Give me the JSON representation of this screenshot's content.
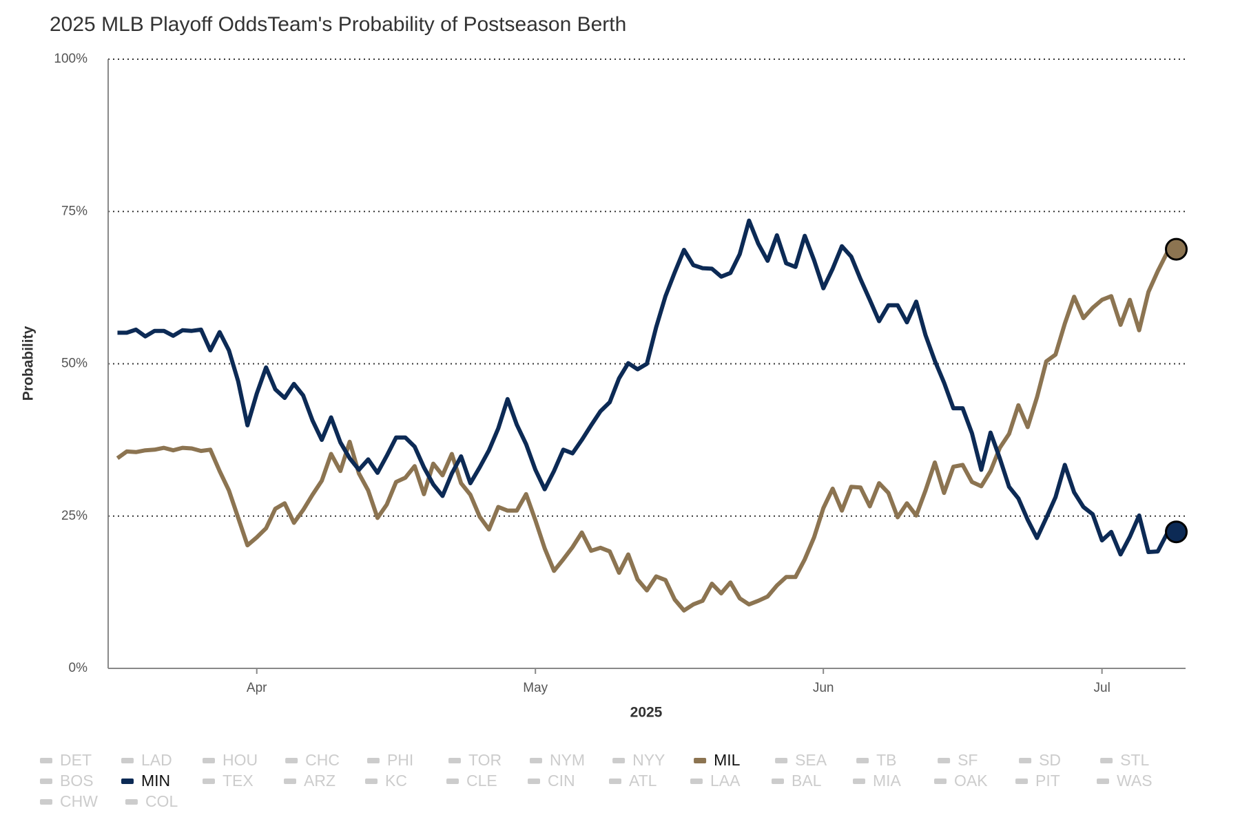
{
  "chart_data": {
    "type": "line",
    "title": "2025 MLB Playoff OddsTeam's Probability of Postseason Berth",
    "xlabel": "2025",
    "ylabel": "Probability",
    "x": [
      "2025-03-17",
      "2025-03-18",
      "2025-03-19",
      "2025-03-20",
      "2025-03-21",
      "2025-03-22",
      "2025-03-23",
      "2025-03-24",
      "2025-03-25",
      "2025-03-26",
      "2025-03-27",
      "2025-03-28",
      "2025-03-29",
      "2025-03-30",
      "2025-03-31",
      "2025-04-01",
      "2025-04-02",
      "2025-04-03",
      "2025-04-04",
      "2025-04-05",
      "2025-04-06",
      "2025-04-07",
      "2025-04-08",
      "2025-04-09",
      "2025-04-10",
      "2025-04-11",
      "2025-04-12",
      "2025-04-13",
      "2025-04-14",
      "2025-04-15",
      "2025-04-16",
      "2025-04-17",
      "2025-04-18",
      "2025-04-19",
      "2025-04-20",
      "2025-04-21",
      "2025-04-22",
      "2025-04-23",
      "2025-04-24",
      "2025-04-25",
      "2025-04-26",
      "2025-04-27",
      "2025-04-28",
      "2025-04-29",
      "2025-04-30",
      "2025-05-01",
      "2025-05-02",
      "2025-05-03",
      "2025-05-04",
      "2025-05-05",
      "2025-05-06",
      "2025-05-07",
      "2025-05-08",
      "2025-05-09",
      "2025-05-10",
      "2025-05-11",
      "2025-05-12",
      "2025-05-13",
      "2025-05-14",
      "2025-05-15",
      "2025-05-16",
      "2025-05-17",
      "2025-05-18",
      "2025-05-19",
      "2025-05-20",
      "2025-05-21",
      "2025-05-22",
      "2025-05-23",
      "2025-05-24",
      "2025-05-25",
      "2025-05-26",
      "2025-05-27",
      "2025-05-28",
      "2025-05-29",
      "2025-05-30",
      "2025-05-31",
      "2025-06-01",
      "2025-06-02",
      "2025-06-03",
      "2025-06-04",
      "2025-06-05",
      "2025-06-06",
      "2025-06-07",
      "2025-06-08",
      "2025-06-09",
      "2025-06-10",
      "2025-06-11",
      "2025-06-12",
      "2025-06-13",
      "2025-06-14",
      "2025-06-15",
      "2025-06-16",
      "2025-06-17",
      "2025-06-18",
      "2025-06-19",
      "2025-06-20",
      "2025-06-21",
      "2025-06-22",
      "2025-06-23",
      "2025-06-24",
      "2025-06-25",
      "2025-06-26",
      "2025-06-27",
      "2025-06-28",
      "2025-06-29",
      "2025-06-30",
      "2025-07-01",
      "2025-07-02",
      "2025-07-03",
      "2025-07-04",
      "2025-07-05",
      "2025-07-06",
      "2025-07-07",
      "2025-07-08",
      "2025-07-09"
    ],
    "xlim": [
      "2025-03-16",
      "2025-07-10"
    ],
    "xticks": [
      {
        "value": "2025-04-01",
        "label": "Apr"
      },
      {
        "value": "2025-05-01",
        "label": "May"
      },
      {
        "value": "2025-06-01",
        "label": "Jun"
      },
      {
        "value": "2025-07-01",
        "label": "Jul"
      }
    ],
    "ylim": [
      0,
      100
    ],
    "yticks": [
      {
        "value": 0,
        "label": "0%"
      },
      {
        "value": 25,
        "label": "25%"
      },
      {
        "value": 50,
        "label": "50%"
      },
      {
        "value": 75,
        "label": "75%"
      },
      {
        "value": 100,
        "label": "100%"
      }
    ],
    "grid": true,
    "series": [
      {
        "name": "MIL",
        "color": "#8c7451",
        "values": [
          34.5,
          35.6,
          35.5,
          35.8,
          35.9,
          36.2,
          35.8,
          36.2,
          36.1,
          35.7,
          35.9,
          32.4,
          29.2,
          24.7,
          20.2,
          21.5,
          23.0,
          26.2,
          27.1,
          23.9,
          26.0,
          28.5,
          30.8,
          35.2,
          32.4,
          37.2,
          32.0,
          29.2,
          24.7,
          26.9,
          30.6,
          31.3,
          33.2,
          28.6,
          33.6,
          31.7,
          35.2,
          30.4,
          28.5,
          24.9,
          22.8,
          26.5,
          25.9,
          25.9,
          28.6,
          24.3,
          19.7,
          16.0,
          17.9,
          19.9,
          22.3,
          19.3,
          19.8,
          19.2,
          15.7,
          18.7,
          14.6,
          12.8,
          15.1,
          14.5,
          11.3,
          9.5,
          10.5,
          11.1,
          13.9,
          12.3,
          14.1,
          11.5,
          10.5,
          11.1,
          11.8,
          13.6,
          15.0,
          15.0,
          17.9,
          21.5,
          26.3,
          29.5,
          25.9,
          29.8,
          29.7,
          26.6,
          30.4,
          28.8,
          24.8,
          27.1,
          25.1,
          29.2,
          33.8,
          28.8,
          33.1,
          33.4,
          30.6,
          29.9,
          32.4,
          36.2,
          38.5,
          43.2,
          39.6,
          44.5,
          50.4,
          51.5,
          56.6,
          61.0,
          57.5,
          59.2,
          60.5,
          61.1,
          56.4,
          60.5,
          55.5,
          61.8,
          65.2,
          68.2,
          68.8
        ]
      },
      {
        "name": "MIN",
        "color": "#0c2a55",
        "values": [
          55.1,
          55.1,
          55.6,
          54.5,
          55.4,
          55.4,
          54.6,
          55.5,
          55.4,
          55.6,
          52.2,
          55.2,
          52.2,
          47.1,
          39.9,
          45.1,
          49.4,
          45.8,
          44.4,
          46.7,
          44.8,
          40.7,
          37.5,
          41.2,
          37.1,
          34.5,
          32.6,
          34.3,
          32.1,
          34.9,
          37.9,
          37.9,
          36.4,
          33.0,
          30.2,
          28.3,
          32.0,
          34.8,
          30.4,
          33.0,
          35.8,
          39.4,
          44.2,
          40.0,
          36.8,
          32.6,
          29.4,
          32.4,
          35.9,
          35.3,
          37.5,
          39.9,
          42.2,
          43.7,
          47.6,
          50.1,
          49.1,
          50.0,
          56.0,
          61.1,
          65.0,
          68.7,
          66.2,
          65.7,
          65.6,
          64.3,
          64.9,
          68.0,
          73.5,
          69.7,
          66.9,
          71.1,
          66.5,
          65.9,
          71.0,
          67.0,
          62.4,
          65.6,
          69.3,
          67.6,
          63.9,
          60.5,
          57.0,
          59.6,
          59.6,
          56.8,
          60.2,
          54.7,
          50.5,
          46.9,
          42.7,
          42.7,
          38.6,
          32.6,
          38.7,
          34.5,
          29.8,
          27.9,
          24.4,
          21.4,
          24.7,
          28.1,
          33.4,
          28.9,
          26.5,
          25.3,
          21.0,
          22.4,
          18.7,
          21.6,
          25.1,
          19.1,
          19.2,
          22.1,
          22.4
        ]
      }
    ],
    "legend": [
      "DET",
      "LAD",
      "HOU",
      "CHC",
      "PHI",
      "TOR",
      "NYM",
      "NYY",
      "MIL",
      "SEA",
      "TB",
      "SF",
      "SD",
      "STL",
      "BOS",
      "MIN",
      "TEX",
      "ARZ",
      "KC",
      "CLE",
      "CIN",
      "ATL",
      "LAA",
      "BAL",
      "MIA",
      "OAK",
      "PIT",
      "WAS",
      "CHW",
      "COL"
    ],
    "legend_inactive_color": "#cccccc"
  }
}
